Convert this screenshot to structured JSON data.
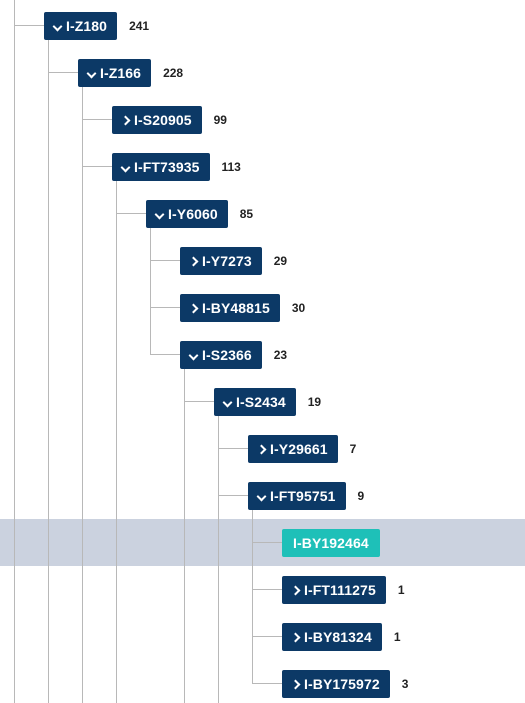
{
  "tree": {
    "nodes": [
      {
        "label": "I-Z180",
        "count": "241",
        "state": "expanded"
      },
      {
        "label": "I-Z166",
        "count": "228",
        "state": "expanded"
      },
      {
        "label": "I-S20905",
        "count": "99",
        "state": "collapsed"
      },
      {
        "label": "I-FT73935",
        "count": "113",
        "state": "expanded"
      },
      {
        "label": "I-Y6060",
        "count": "85",
        "state": "expanded"
      },
      {
        "label": "I-Y7273",
        "count": "29",
        "state": "collapsed"
      },
      {
        "label": "I-BY48815",
        "count": "30",
        "state": "collapsed"
      },
      {
        "label": "I-S2366",
        "count": "23",
        "state": "expanded"
      },
      {
        "label": "I-S2434",
        "count": "19",
        "state": "expanded"
      },
      {
        "label": "I-Y29661",
        "count": "7",
        "state": "collapsed"
      },
      {
        "label": "I-FT95751",
        "count": "9",
        "state": "expanded"
      },
      {
        "label": "I-BY192464",
        "count": "",
        "state": "selected"
      },
      {
        "label": "I-FT111275",
        "count": "1",
        "state": "collapsed"
      },
      {
        "label": "I-BY81324",
        "count": "1",
        "state": "collapsed"
      },
      {
        "label": "I-BY175972",
        "count": "3",
        "state": "collapsed"
      }
    ],
    "colors": {
      "node_bg": "#0c3966",
      "selected_bg": "#1ec0b8",
      "selected_row": "#cbd2df",
      "connector": "#b8b8b8"
    }
  }
}
